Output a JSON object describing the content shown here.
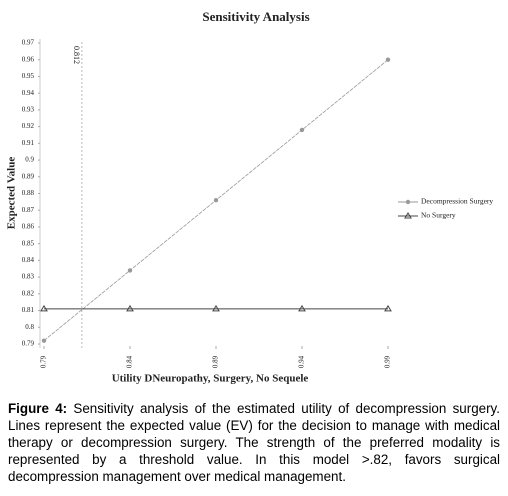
{
  "chart_data": {
    "type": "line",
    "title": "Sensitivity Analysis",
    "x_label": "Utility DNeuropathy, Surgery, No Sequele",
    "y_label": "Expected Value",
    "x": [
      0.79,
      0.84,
      0.89,
      0.94,
      0.99
    ],
    "series": [
      {
        "name": "Decompression Surgery",
        "color": "#999999",
        "marker": "circle",
        "values": [
          0.792,
          0.834,
          0.876,
          0.918,
          0.96
        ]
      },
      {
        "name": "No Surgery",
        "color": "#444444",
        "marker": "triangle",
        "values": [
          0.811,
          0.811,
          0.811,
          0.811,
          0.811
        ]
      }
    ],
    "threshold": 0.812,
    "xlim": [
      0.79,
      0.99
    ],
    "xticks": [
      0.79,
      0.84,
      0.89,
      0.94,
      0.99
    ],
    "ylim": [
      0.79,
      0.97
    ],
    "yticks": [
      0.79,
      0.8,
      0.81,
      0.82,
      0.83,
      0.84,
      0.85,
      0.86,
      0.87,
      0.88,
      0.89,
      0.9,
      0.91,
      0.92,
      0.93,
      0.94,
      0.95,
      0.96,
      0.97
    ],
    "legend": "right"
  },
  "caption": {
    "label": "Figure 4:",
    "text": "Sensitivity analysis of the estimated utility of decompression surgery. Lines represent the expected value (EV) for the decision to manage with medical therapy or decompression surgery. The strength of the preferred modality is represented by a threshold value.  In this model >.82, favors surgical decompression management over medical management."
  }
}
